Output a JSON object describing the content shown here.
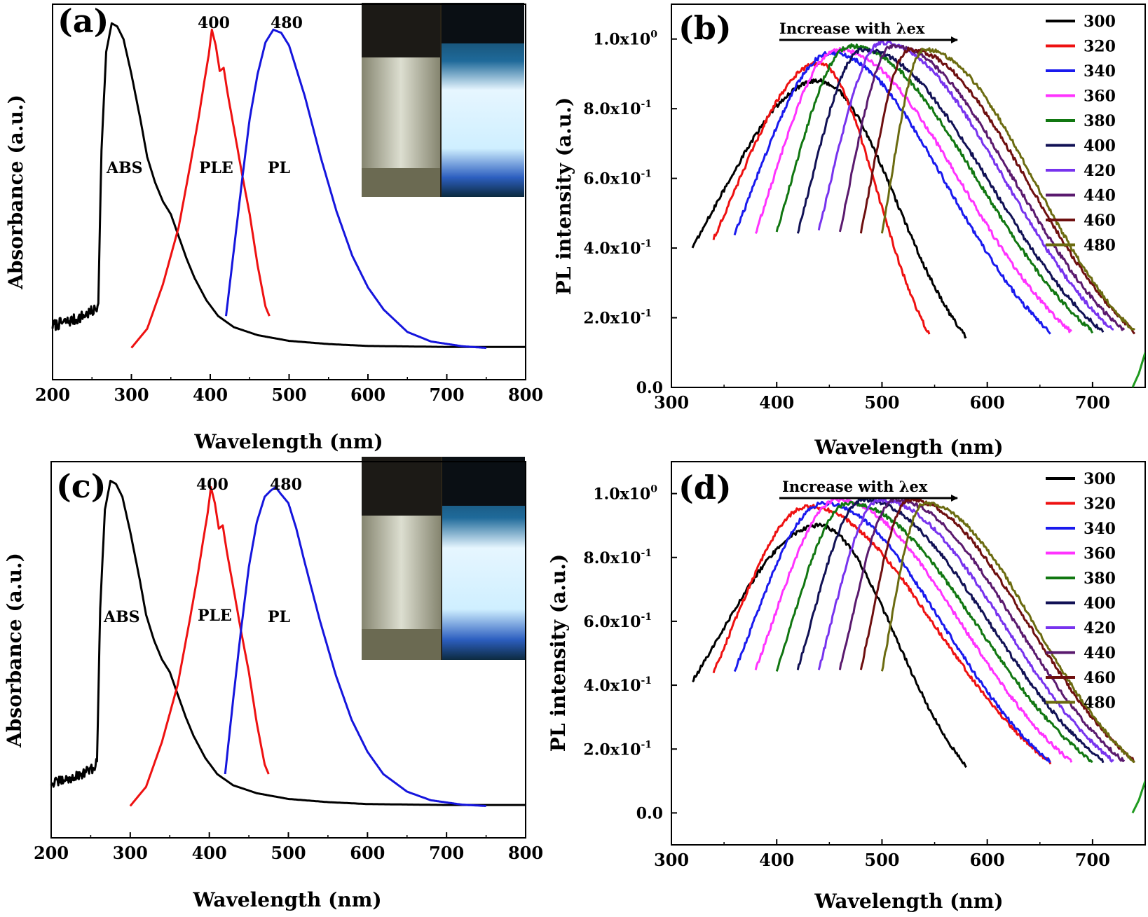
{
  "chart_data": [
    {
      "panel": "(a)",
      "type": "line",
      "xlabel": "Wavelength (nm)",
      "ylabel": "Absorbance (a.u.)",
      "xlim": [
        200,
        800
      ],
      "ylim": [
        -0.1,
        1.08
      ],
      "xticks": [
        200,
        300,
        400,
        500,
        600,
        700,
        800
      ],
      "yticks_shown": false,
      "grid": false,
      "peak_labels": [
        "400",
        "480"
      ],
      "has_photo_inset": true,
      "series": [
        {
          "name": "ABS",
          "color": "#000000",
          "noise": 0.018,
          "noise_until": 258,
          "x": [
            200,
            230,
            255,
            258,
            262,
            268,
            275,
            282,
            290,
            300,
            312,
            320,
            330,
            340,
            350,
            360,
            370,
            380,
            395,
            410,
            430,
            460,
            500,
            550,
            600,
            700,
            800
          ],
          "y": [
            0.07,
            0.09,
            0.12,
            0.14,
            0.62,
            0.93,
            1.02,
            1.01,
            0.97,
            0.86,
            0.71,
            0.6,
            0.52,
            0.46,
            0.42,
            0.35,
            0.28,
            0.22,
            0.15,
            0.1,
            0.065,
            0.04,
            0.022,
            0.012,
            0.006,
            0.003,
            0.003
          ]
        },
        {
          "name": "PLE",
          "color": "#ee1111",
          "x": [
            300,
            320,
            340,
            360,
            375,
            385,
            392,
            398,
            402,
            407,
            412,
            417,
            422,
            430,
            440,
            450,
            460,
            470,
            475
          ],
          "y": [
            0.0,
            0.06,
            0.2,
            0.38,
            0.58,
            0.72,
            0.83,
            0.92,
            1.0,
            0.95,
            0.87,
            0.88,
            0.8,
            0.69,
            0.55,
            0.42,
            0.26,
            0.13,
            0.1
          ]
        },
        {
          "name": "PL",
          "color": "#1515dd",
          "x": [
            420,
            430,
            440,
            450,
            460,
            470,
            480,
            490,
            500,
            510,
            520,
            540,
            560,
            580,
            600,
            620,
            650,
            680,
            720,
            750
          ],
          "y": [
            0.1,
            0.31,
            0.52,
            0.72,
            0.86,
            0.96,
            1.0,
            0.99,
            0.95,
            0.87,
            0.79,
            0.6,
            0.43,
            0.29,
            0.19,
            0.12,
            0.05,
            0.02,
            0.005,
            0.0
          ]
        }
      ],
      "annotations": [
        "ABS",
        "PLE",
        "PL"
      ]
    },
    {
      "panel": "(b)",
      "type": "line",
      "xlabel": "Wavelength (nm)",
      "ylabel": "PL intensity (a.u.)",
      "xlim": [
        300,
        750
      ],
      "ylim": [
        0,
        1.1
      ],
      "xticks": [
        300,
        400,
        500,
        600,
        700
      ],
      "yticks": [
        {
          "v": 0.0,
          "base": "0.0",
          "exp": ""
        },
        {
          "v": 0.2,
          "base": "2.0x10",
          "exp": "-1"
        },
        {
          "v": 0.4,
          "base": "4.0x10",
          "exp": "-1"
        },
        {
          "v": 0.6,
          "base": "6.0x10",
          "exp": "-1"
        },
        {
          "v": 0.8,
          "base": "8.0x10",
          "exp": "-1"
        },
        {
          "v": 1.0,
          "base": "1.0x10",
          "exp": "0"
        }
      ],
      "grid": false,
      "legend_position": "right",
      "arrow_label": "Increase with λex",
      "excitation_series": [
        {
          "name": "300",
          "color": "#000000",
          "start": 320,
          "peak": 440,
          "end": 580,
          "amp": 0.88
        },
        {
          "name": "320",
          "color": "#ee1111",
          "start": 340,
          "peak": 440,
          "end": 545,
          "amp": 0.93
        },
        {
          "name": "340",
          "color": "#1a1aee",
          "start": 360,
          "peak": 452,
          "end": 660,
          "amp": 0.96
        },
        {
          "name": "360",
          "color": "#ff33ff",
          "start": 380,
          "peak": 458,
          "end": 680,
          "amp": 0.97
        },
        {
          "name": "380",
          "color": "#117711",
          "start": 400,
          "peak": 470,
          "end": 700,
          "amp": 0.98
        },
        {
          "name": "400",
          "color": "#111155",
          "start": 420,
          "peak": 482,
          "end": 710,
          "amp": 0.97
        },
        {
          "name": "420",
          "color": "#7733ee",
          "start": 440,
          "peak": 500,
          "end": 720,
          "amp": 0.99
        },
        {
          "name": "440",
          "color": "#5a1a6e",
          "start": 460,
          "peak": 510,
          "end": 730,
          "amp": 0.98
        },
        {
          "name": "460",
          "color": "#6e0f0f",
          "start": 480,
          "peak": 526,
          "end": 740,
          "amp": 0.97
        },
        {
          "name": "480",
          "color": "#6b6b10",
          "start": 500,
          "peak": 540,
          "end": 740,
          "amp": 0.97
        }
      ]
    },
    {
      "panel": "(c)",
      "type": "line",
      "xlabel": "Wavelength (nm)",
      "ylabel": "Absorbance (a.u.)",
      "xlim": [
        200,
        800
      ],
      "ylim": [
        -0.1,
        1.08
      ],
      "xticks": [
        200,
        300,
        400,
        500,
        600,
        700,
        800
      ],
      "yticks_shown": false,
      "grid": false,
      "peak_labels": [
        "400",
        "480"
      ],
      "has_photo_inset": true,
      "series": [
        {
          "name": "ABS",
          "color": "#000000",
          "noise": 0.015,
          "noise_until": 258,
          "x": [
            200,
            230,
            255,
            258,
            262,
            268,
            275,
            282,
            290,
            300,
            312,
            320,
            330,
            340,
            350,
            360,
            370,
            380,
            395,
            410,
            430,
            460,
            500,
            550,
            600,
            700,
            800
          ],
          "y": [
            0.07,
            0.09,
            0.12,
            0.14,
            0.62,
            0.93,
            1.02,
            1.01,
            0.97,
            0.86,
            0.71,
            0.6,
            0.52,
            0.46,
            0.42,
            0.35,
            0.28,
            0.22,
            0.15,
            0.1,
            0.065,
            0.04,
            0.022,
            0.012,
            0.006,
            0.003,
            0.003
          ]
        },
        {
          "name": "PLE",
          "color": "#ee1111",
          "x": [
            300,
            320,
            340,
            360,
            375,
            385,
            392,
            398,
            402,
            407,
            412,
            417,
            422,
            430,
            440,
            450,
            460,
            470,
            475
          ],
          "y": [
            0.0,
            0.06,
            0.2,
            0.38,
            0.58,
            0.72,
            0.83,
            0.92,
            1.0,
            0.95,
            0.87,
            0.88,
            0.8,
            0.69,
            0.55,
            0.42,
            0.26,
            0.13,
            0.1
          ]
        },
        {
          "name": "PL",
          "color": "#1515dd",
          "x": [
            420,
            430,
            440,
            450,
            460,
            470,
            478,
            484,
            490,
            500,
            510,
            520,
            540,
            560,
            580,
            600,
            620,
            650,
            680,
            720,
            750
          ],
          "y": [
            0.1,
            0.33,
            0.55,
            0.75,
            0.89,
            0.97,
            0.99,
            1.0,
            0.98,
            0.95,
            0.87,
            0.77,
            0.58,
            0.41,
            0.27,
            0.17,
            0.1,
            0.045,
            0.018,
            0.004,
            0.0
          ]
        }
      ],
      "annotations": [
        "ABS",
        "PLE",
        "PL"
      ]
    },
    {
      "panel": "(d)",
      "type": "line",
      "xlabel": "Wavelength (nm)",
      "ylabel": "PL intensity (a.u.)",
      "xlim": [
        300,
        750
      ],
      "ylim": [
        -0.1,
        1.1
      ],
      "xticks": [
        300,
        400,
        500,
        600,
        700
      ],
      "yticks": [
        {
          "v": 0.0,
          "base": "0.0",
          "exp": ""
        },
        {
          "v": 0.2,
          "base": "2.0x10",
          "exp": "-1"
        },
        {
          "v": 0.4,
          "base": "4.0x10",
          "exp": "-1"
        },
        {
          "v": 0.6,
          "base": "6.0x10",
          "exp": "-1"
        },
        {
          "v": 0.8,
          "base": "8.0x10",
          "exp": "-1"
        },
        {
          "v": 1.0,
          "base": "1.0x10",
          "exp": "0"
        }
      ],
      "grid": false,
      "legend_position": "right",
      "arrow_label": "Increase with λex",
      "excitation_series": [
        {
          "name": "300",
          "color": "#000000",
          "start": 320,
          "peak": 440,
          "end": 580,
          "amp": 0.9
        },
        {
          "name": "320",
          "color": "#ee1111",
          "start": 340,
          "peak": 430,
          "end": 660,
          "amp": 0.96
        },
        {
          "name": "340",
          "color": "#1a1aee",
          "start": 360,
          "peak": 445,
          "end": 660,
          "amp": 0.97
        },
        {
          "name": "360",
          "color": "#ff33ff",
          "start": 380,
          "peak": 458,
          "end": 680,
          "amp": 0.98
        },
        {
          "name": "380",
          "color": "#117711",
          "start": 400,
          "peak": 468,
          "end": 700,
          "amp": 0.97
        },
        {
          "name": "400",
          "color": "#111155",
          "start": 420,
          "peak": 482,
          "end": 710,
          "amp": 0.98
        },
        {
          "name": "420",
          "color": "#7733ee",
          "start": 440,
          "peak": 498,
          "end": 720,
          "amp": 0.98
        },
        {
          "name": "440",
          "color": "#5a1a6e",
          "start": 460,
          "peak": 512,
          "end": 730,
          "amp": 0.98
        },
        {
          "name": "460",
          "color": "#6e0f0f",
          "start": 480,
          "peak": 526,
          "end": 740,
          "amp": 0.98
        },
        {
          "name": "480",
          "color": "#6b6b10",
          "start": 500,
          "peak": 540,
          "end": 740,
          "amp": 0.97
        }
      ]
    }
  ]
}
